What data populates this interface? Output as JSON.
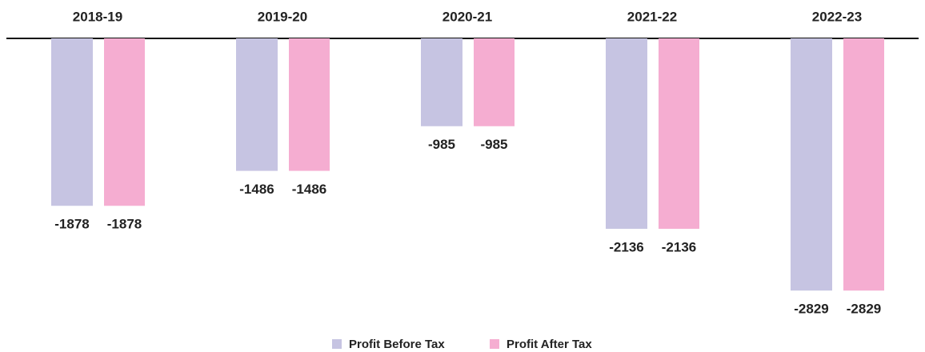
{
  "chart_data": {
    "type": "bar",
    "categories": [
      "2018-19",
      "2019-20",
      "2020-21",
      "2021-22",
      "2022-23"
    ],
    "series": [
      {
        "name": "Profit Before Tax",
        "color": "#c6c4e2",
        "values": [
          -1878,
          -1486,
          -985,
          -2136,
          -2829
        ]
      },
      {
        "name": "Profit After Tax",
        "color": "#f5add1",
        "values": [
          -1878,
          -1486,
          -985,
          -2136,
          -2829
        ]
      }
    ],
    "ylim": [
      -3500,
      0
    ],
    "legend": "bottom"
  }
}
